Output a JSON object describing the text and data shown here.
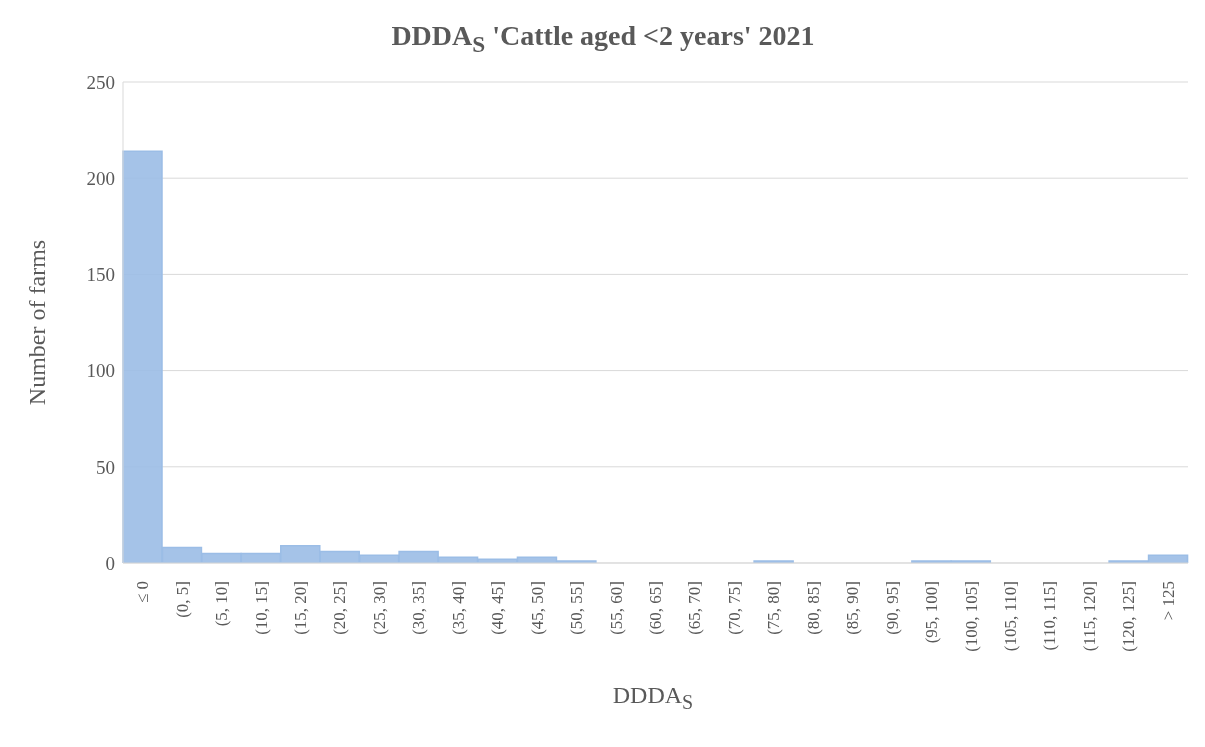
{
  "chart_data": {
    "type": "bar",
    "title": "DDDA$_{S}$ 'Cattle aged <2 years' 2021",
    "xlabel": "DDDA$_{S}$",
    "ylabel": "Number of farms",
    "categories": [
      "≤ 0",
      "(0, 5]",
      "(5, 10]",
      "(10, 15]",
      "(15, 20]",
      "(20, 25]",
      "(25, 30]",
      "(30, 35]",
      "(35, 40]",
      "(40, 45]",
      "(45, 50]",
      "(50, 55]",
      "(55, 60]",
      "(60, 65]",
      "(65, 70]",
      "(70, 75]",
      "(75, 80]",
      "(80, 85]",
      "(85, 90]",
      "(90, 95]",
      "(95, 100]",
      "(100, 105]",
      "(105, 110]",
      "(110, 115]",
      "(115, 120]",
      "(120, 125]",
      "> 125"
    ],
    "values": [
      214,
      8,
      5,
      5,
      9,
      6,
      4,
      6,
      3,
      2,
      3,
      1,
      0,
      0,
      0,
      0,
      1,
      0,
      0,
      0,
      1,
      1,
      0,
      0,
      0,
      1,
      4
    ],
    "color": "#9bbde6",
    "ylim": [
      0,
      250
    ],
    "yticks": [
      0,
      50,
      100,
      150,
      200,
      250
    ],
    "grid": "y"
  }
}
